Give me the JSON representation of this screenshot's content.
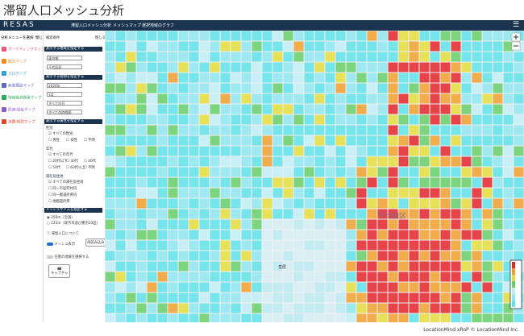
{
  "title": "滞留人口メッシュ分析",
  "header": {
    "logo": "RESAS",
    "tabs": [
      "滞留人口メッシュ分析",
      "メッシュマップ",
      "選択地域のグラフ"
    ]
  },
  "menu": {
    "heading": "分析メニューを選択",
    "close": "閉じる",
    "items": [
      "マーケティングマップ",
      "観光マップ",
      "人口マップ",
      "産業構造マップ",
      "地域経済循環マップ",
      "医療・福祉マップ",
      "消費・財政マップ"
    ]
  },
  "search": {
    "heading": "検索条件",
    "close": "閉じる",
    "region": {
      "label": "表示する地域を指定する",
      "prefecture": "東京都",
      "city": "千代田区"
    },
    "period": {
      "label": "表示する期間を指定する",
      "year": "2024年",
      "month": "1月",
      "day": "すべての日",
      "time": "すべての時間帯"
    },
    "attributes": {
      "label": "表示する属性を指定する",
      "gender": {
        "label": "性別",
        "options": [
          "すべての性別",
          "男性",
          "女性",
          "不明"
        ]
      },
      "age": {
        "label": "年代",
        "options": [
          "すべての年代",
          "20代以下",
          "30代",
          "40代",
          "50代",
          "60代以上",
          "不明"
        ]
      },
      "residence": {
        "label": "滞在居住地",
        "options": [
          "すべての滞在居住地",
          "同一市区町村内",
          "同一都道府県内",
          "他都道府県"
        ]
      }
    },
    "mesh": {
      "label": "メッシュサイズを指定する",
      "options": [
        "250m（全国）",
        "125m（政令市及び東京23区）"
      ]
    },
    "about": "滞留人口について",
    "reload": "再読み込み",
    "mesh_toggle": "メッシュ表示",
    "select_area": "任意の地域を選択する",
    "capture": "キャプチャ"
  },
  "map": {
    "labels": [
      "千代田区",
      "皇居"
    ]
  },
  "footer": "LocationMind xRoP © LocationMind Inc."
}
